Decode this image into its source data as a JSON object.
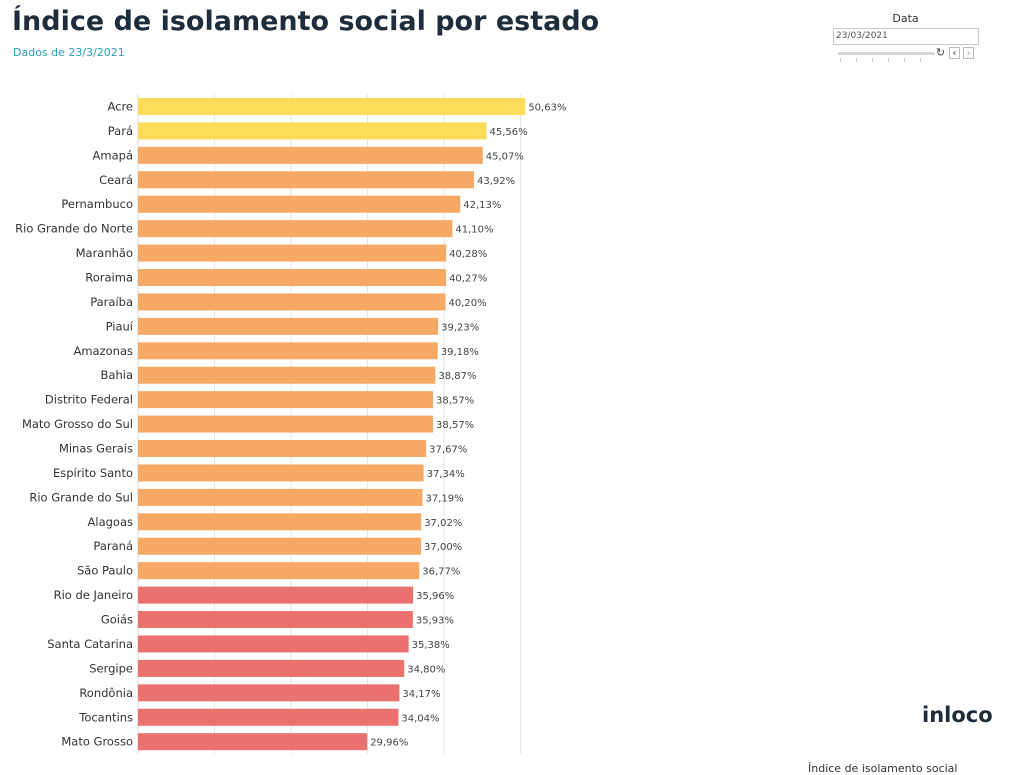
{
  "header": {
    "title": "Índice de isolamento social por estado",
    "subtitle": "Dados de 23/3/2021"
  },
  "filter": {
    "label": "Data",
    "value": "23/03/2021",
    "reset_icon": "refresh-icon",
    "prev_icon": "chevron-left-icon",
    "next_icon": "chevron-right-icon"
  },
  "logo": {
    "text": "inloco"
  },
  "colors": {
    "yellow": "#fddc5c",
    "orange": "#f5a964",
    "red": "#ea716d",
    "grid": "#e6e6e6"
  },
  "chart_data": {
    "type": "bar",
    "orientation": "horizontal",
    "title": "Índice de isolamento social por estado",
    "subtitle": "Dados de 23/3/2021",
    "xlabel": "Índice de isolamento social",
    "ylabel": "",
    "xlim": [
      0,
      55
    ],
    "grid": "vertical",
    "categories": [
      "Acre",
      "Pará",
      "Amapá",
      "Ceará",
      "Pernambuco",
      "Rio Grande do Norte",
      "Maranhão",
      "Roraima",
      "Paraíba",
      "Piauí",
      "Amazonas",
      "Bahia",
      "Distrito Federal",
      "Mato Grosso do Sul",
      "Minas Gerais",
      "Espírito Santo",
      "Rio Grande do Sul",
      "Alagoas",
      "Paraná",
      "São Paulo",
      "Rio de Janeiro",
      "Goiás",
      "Santa Catarina",
      "Sergipe",
      "Rondônia",
      "Tocantins",
      "Mato Grosso"
    ],
    "values": [
      50.63,
      45.56,
      45.07,
      43.92,
      42.13,
      41.1,
      40.28,
      40.27,
      40.2,
      39.23,
      39.18,
      38.87,
      38.57,
      38.57,
      37.67,
      37.34,
      37.19,
      37.02,
      37.0,
      36.77,
      35.96,
      35.93,
      35.38,
      34.8,
      34.17,
      34.04,
      29.96
    ],
    "value_labels": [
      "50,63%",
      "45,56%",
      "45,07%",
      "43,92%",
      "42,13%",
      "41,10%",
      "40,28%",
      "40,27%",
      "40,20%",
      "39,23%",
      "39,18%",
      "38,87%",
      "38,57%",
      "38,57%",
      "37,67%",
      "37,34%",
      "37,19%",
      "37,02%",
      "37,00%",
      "36,77%",
      "35,96%",
      "35,93%",
      "35,38%",
      "34,80%",
      "34,17%",
      "34,04%",
      "29,96%"
    ],
    "bar_colors": [
      "#fddc5c",
      "#fddc5c",
      "#f5a964",
      "#f5a964",
      "#f5a964",
      "#f5a964",
      "#f5a964",
      "#f5a964",
      "#f5a964",
      "#f5a964",
      "#f5a964",
      "#f5a964",
      "#f5a964",
      "#f5a964",
      "#f5a964",
      "#f5a964",
      "#f5a964",
      "#f5a964",
      "#f5a964",
      "#f5a964",
      "#ea716d",
      "#ea716d",
      "#ea716d",
      "#ea716d",
      "#ea716d",
      "#ea716d",
      "#ea716d"
    ]
  }
}
